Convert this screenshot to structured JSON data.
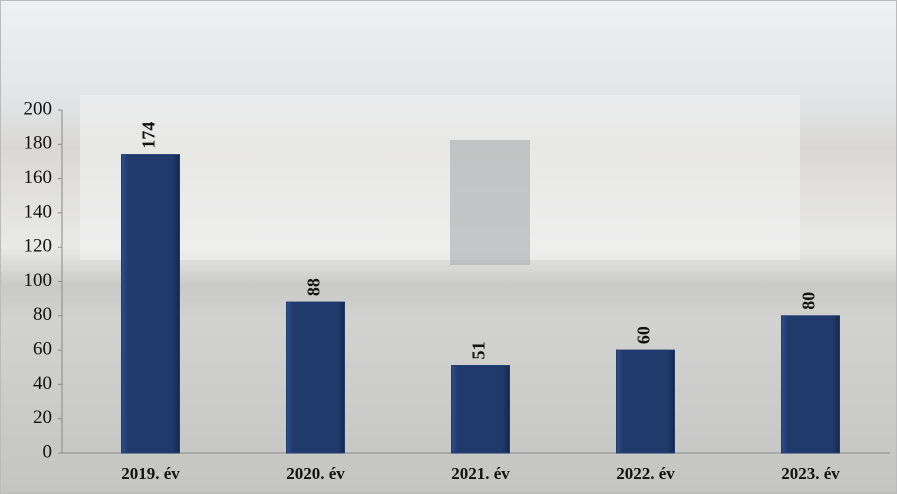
{
  "chart_data": {
    "type": "bar",
    "categories": [
      "2019. év",
      "2020. év",
      "2021. év",
      "2022. év",
      "2023. év"
    ],
    "values": [
      174,
      88,
      51,
      60,
      80
    ],
    "color": "#1f3a6b",
    "ylim": [
      0,
      200
    ],
    "yticks": [
      0,
      20,
      40,
      60,
      80,
      100,
      120,
      140,
      160,
      180,
      200
    ]
  }
}
